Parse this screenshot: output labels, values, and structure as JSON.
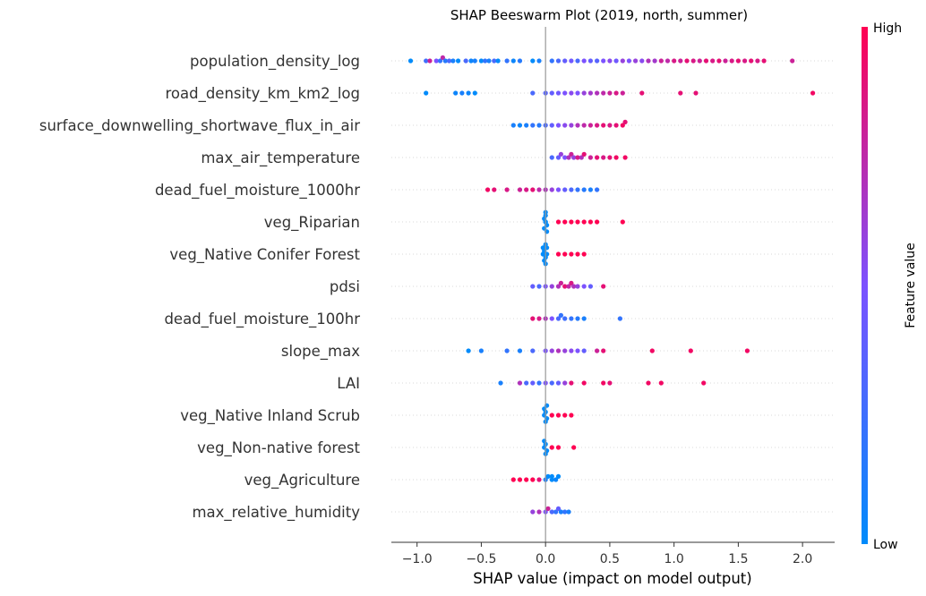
{
  "chart_data": {
    "type": "scatter",
    "subtype": "shap-beeswarm",
    "title": "SHAP Beeswarm Plot (2019, north, summer)",
    "xlabel": "SHAP value (impact on model output)",
    "xlim": [
      -1.2,
      2.25
    ],
    "xticks": [
      -1.0,
      -0.5,
      0.0,
      0.5,
      1.0,
      1.5,
      2.0
    ],
    "xtick_labels": [
      "−1.0",
      "−0.5",
      "0.0",
      "0.5",
      "1.0",
      "1.5",
      "2.0"
    ],
    "colorbar": {
      "label": "Feature value",
      "high": "High",
      "low": "Low",
      "low_color": "#008bfb",
      "high_color": "#ff0052"
    },
    "features": [
      {
        "name": "population_density_log",
        "points": [
          [
            -1.05,
            0.0
          ],
          [
            -0.93,
            0.25
          ],
          [
            -0.9,
            0.8
          ],
          [
            -0.85,
            0.5
          ],
          [
            -0.82,
            0.2
          ],
          [
            -0.8,
            0.75
          ],
          [
            -0.78,
            0.15
          ],
          [
            -0.75,
            0.3
          ],
          [
            -0.72,
            0.1
          ],
          [
            -0.68,
            0.0
          ],
          [
            -0.62,
            0.3
          ],
          [
            -0.58,
            0.05
          ],
          [
            -0.55,
            0.1
          ],
          [
            -0.5,
            0.0
          ],
          [
            -0.47,
            0.2
          ],
          [
            -0.44,
            0.1
          ],
          [
            -0.4,
            0.3
          ],
          [
            -0.37,
            0.0
          ],
          [
            -0.3,
            0.2
          ],
          [
            -0.25,
            0.05
          ],
          [
            -0.2,
            0.15
          ],
          [
            -0.1,
            0.0
          ],
          [
            -0.05,
            0.1
          ],
          [
            0.05,
            0.2
          ],
          [
            0.1,
            0.3
          ],
          [
            0.15,
            0.4
          ],
          [
            0.2,
            0.45
          ],
          [
            0.25,
            0.3
          ],
          [
            0.3,
            0.5
          ],
          [
            0.35,
            0.4
          ],
          [
            0.4,
            0.35
          ],
          [
            0.45,
            0.5
          ],
          [
            0.5,
            0.55
          ],
          [
            0.55,
            0.45
          ],
          [
            0.6,
            0.6
          ],
          [
            0.65,
            0.5
          ],
          [
            0.7,
            0.6
          ],
          [
            0.75,
            0.55
          ],
          [
            0.8,
            0.7
          ],
          [
            0.85,
            0.65
          ],
          [
            0.9,
            0.8
          ],
          [
            0.95,
            0.75
          ],
          [
            1.0,
            0.85
          ],
          [
            1.05,
            0.8
          ],
          [
            1.1,
            0.9
          ],
          [
            1.15,
            0.85
          ],
          [
            1.2,
            0.8
          ],
          [
            1.25,
            0.9
          ],
          [
            1.3,
            0.85
          ],
          [
            1.35,
            0.9
          ],
          [
            1.4,
            0.8
          ],
          [
            1.45,
            0.85
          ],
          [
            1.5,
            0.9
          ],
          [
            1.55,
            0.85
          ],
          [
            1.6,
            0.9
          ],
          [
            1.65,
            0.85
          ],
          [
            1.7,
            0.9
          ],
          [
            1.92,
            0.8
          ]
        ]
      },
      {
        "name": "road_density_km_km2_log",
        "points": [
          [
            -0.93,
            0.0
          ],
          [
            -0.7,
            0.05
          ],
          [
            -0.65,
            0.1
          ],
          [
            -0.6,
            0.05
          ],
          [
            -0.55,
            0.0
          ],
          [
            -0.1,
            0.3
          ],
          [
            0.0,
            0.35
          ],
          [
            0.05,
            0.4
          ],
          [
            0.1,
            0.45
          ],
          [
            0.15,
            0.5
          ],
          [
            0.2,
            0.55
          ],
          [
            0.25,
            0.5
          ],
          [
            0.3,
            0.6
          ],
          [
            0.35,
            0.65
          ],
          [
            0.4,
            0.7
          ],
          [
            0.45,
            0.75
          ],
          [
            0.5,
            0.8
          ],
          [
            0.55,
            0.85
          ],
          [
            0.6,
            0.8
          ],
          [
            0.75,
            0.9
          ],
          [
            1.05,
            0.9
          ],
          [
            1.17,
            0.9
          ],
          [
            2.08,
            0.95
          ]
        ]
      },
      {
        "name": "surface_downwelling_shortwave_flux_in_air",
        "points": [
          [
            -0.25,
            0.1
          ],
          [
            -0.2,
            0.05
          ],
          [
            -0.15,
            0.1
          ],
          [
            -0.1,
            0.2
          ],
          [
            -0.05,
            0.15
          ],
          [
            0.0,
            0.3
          ],
          [
            0.05,
            0.4
          ],
          [
            0.1,
            0.5
          ],
          [
            0.15,
            0.55
          ],
          [
            0.2,
            0.6
          ],
          [
            0.25,
            0.7
          ],
          [
            0.3,
            0.75
          ],
          [
            0.35,
            0.8
          ],
          [
            0.4,
            0.85
          ],
          [
            0.45,
            0.9
          ],
          [
            0.5,
            0.85
          ],
          [
            0.55,
            0.9
          ],
          [
            0.6,
            0.95
          ],
          [
            0.62,
            0.9
          ]
        ]
      },
      {
        "name": "max_air_temperature",
        "points": [
          [
            0.05,
            0.3
          ],
          [
            0.1,
            0.4
          ],
          [
            0.12,
            0.6
          ],
          [
            0.15,
            0.5
          ],
          [
            0.18,
            0.7
          ],
          [
            0.2,
            0.8
          ],
          [
            0.22,
            0.6
          ],
          [
            0.25,
            0.85
          ],
          [
            0.28,
            0.7
          ],
          [
            0.3,
            0.9
          ],
          [
            0.35,
            0.8
          ],
          [
            0.4,
            0.9
          ],
          [
            0.45,
            0.85
          ],
          [
            0.5,
            0.9
          ],
          [
            0.55,
            0.95
          ],
          [
            0.62,
            0.95
          ]
        ]
      },
      {
        "name": "dead_fuel_moisture_1000hr",
        "points": [
          [
            -0.45,
            0.95
          ],
          [
            -0.4,
            0.9
          ],
          [
            -0.3,
            0.85
          ],
          [
            -0.2,
            0.8
          ],
          [
            -0.15,
            0.85
          ],
          [
            -0.1,
            0.9
          ],
          [
            -0.05,
            0.75
          ],
          [
            0.0,
            0.7
          ],
          [
            0.05,
            0.6
          ],
          [
            0.1,
            0.5
          ],
          [
            0.15,
            0.4
          ],
          [
            0.2,
            0.3
          ],
          [
            0.25,
            0.2
          ],
          [
            0.3,
            0.15
          ],
          [
            0.35,
            0.1
          ],
          [
            0.4,
            0.2
          ]
        ]
      },
      {
        "name": "veg_Riparian",
        "points": [
          [
            0.0,
            0.0
          ],
          [
            -0.01,
            0.0
          ],
          [
            0.01,
            0.0
          ],
          [
            0.0,
            0.0
          ],
          [
            -0.01,
            0.0
          ],
          [
            0.0,
            0.0
          ],
          [
            0.01,
            0.0
          ],
          [
            0.0,
            0.0
          ],
          [
            0.1,
            1.0
          ],
          [
            0.15,
            1.0
          ],
          [
            0.2,
            1.0
          ],
          [
            0.25,
            1.0
          ],
          [
            0.3,
            1.0
          ],
          [
            0.35,
            1.0
          ],
          [
            0.4,
            1.0
          ],
          [
            0.6,
            1.0
          ]
        ]
      },
      {
        "name": "veg_Native Conifer Forest",
        "points": [
          [
            -0.02,
            0.0
          ],
          [
            -0.01,
            0.0
          ],
          [
            0.0,
            0.0
          ],
          [
            0.01,
            0.0
          ],
          [
            -0.02,
            0.0
          ],
          [
            -0.01,
            0.0
          ],
          [
            0.0,
            0.0
          ],
          [
            0.01,
            0.0
          ],
          [
            0.0,
            0.0
          ],
          [
            0.1,
            1.0
          ],
          [
            0.15,
            1.0
          ],
          [
            0.2,
            1.0
          ],
          [
            0.25,
            1.0
          ],
          [
            0.3,
            1.0
          ]
        ]
      },
      {
        "name": "pdsi",
        "points": [
          [
            -0.1,
            0.4
          ],
          [
            -0.05,
            0.3
          ],
          [
            0.0,
            0.5
          ],
          [
            0.05,
            0.6
          ],
          [
            0.1,
            0.7
          ],
          [
            0.12,
            0.8
          ],
          [
            0.15,
            0.9
          ],
          [
            0.18,
            0.75
          ],
          [
            0.2,
            0.85
          ],
          [
            0.22,
            0.7
          ],
          [
            0.25,
            0.6
          ],
          [
            0.3,
            0.5
          ],
          [
            0.35,
            0.4
          ],
          [
            0.45,
            0.9
          ]
        ]
      },
      {
        "name": "dead_fuel_moisture_100hr",
        "points": [
          [
            -0.1,
            0.9
          ],
          [
            -0.05,
            0.85
          ],
          [
            0.0,
            0.7
          ],
          [
            0.05,
            0.5
          ],
          [
            0.1,
            0.3
          ],
          [
            0.12,
            0.2
          ],
          [
            0.15,
            0.25
          ],
          [
            0.2,
            0.2
          ],
          [
            0.25,
            0.15
          ],
          [
            0.3,
            0.1
          ],
          [
            0.58,
            0.2
          ]
        ]
      },
      {
        "name": "slope_max",
        "points": [
          [
            -0.6,
            0.0
          ],
          [
            -0.5,
            0.1
          ],
          [
            -0.3,
            0.2
          ],
          [
            -0.2,
            0.1
          ],
          [
            -0.1,
            0.3
          ],
          [
            0.0,
            0.5
          ],
          [
            0.05,
            0.6
          ],
          [
            0.1,
            0.7
          ],
          [
            0.15,
            0.6
          ],
          [
            0.2,
            0.55
          ],
          [
            0.25,
            0.5
          ],
          [
            0.3,
            0.4
          ],
          [
            0.4,
            0.8
          ],
          [
            0.45,
            0.9
          ],
          [
            0.83,
            0.95
          ],
          [
            1.13,
            0.95
          ],
          [
            1.57,
            0.95
          ]
        ]
      },
      {
        "name": "LAI",
        "points": [
          [
            -0.35,
            0.1
          ],
          [
            -0.2,
            0.7
          ],
          [
            -0.15,
            0.3
          ],
          [
            -0.1,
            0.4
          ],
          [
            -0.05,
            0.2
          ],
          [
            0.0,
            0.5
          ],
          [
            0.05,
            0.3
          ],
          [
            0.1,
            0.4
          ],
          [
            0.15,
            0.6
          ],
          [
            0.2,
            0.9
          ],
          [
            0.3,
            0.95
          ],
          [
            0.45,
            0.95
          ],
          [
            0.5,
            0.9
          ],
          [
            0.8,
            0.95
          ],
          [
            0.9,
            0.95
          ],
          [
            1.23,
            0.95
          ]
        ]
      },
      {
        "name": "veg_Native Inland Scrub",
        "points": [
          [
            -0.01,
            0.0
          ],
          [
            0.0,
            0.0
          ],
          [
            0.01,
            0.0
          ],
          [
            -0.01,
            0.0
          ],
          [
            0.0,
            0.0
          ],
          [
            0.01,
            0.0
          ],
          [
            0.05,
            1.0
          ],
          [
            0.1,
            1.0
          ],
          [
            0.15,
            1.0
          ],
          [
            0.2,
            1.0
          ]
        ]
      },
      {
        "name": "veg_Non-native forest",
        "points": [
          [
            -0.01,
            0.0
          ],
          [
            0.0,
            0.0
          ],
          [
            0.01,
            0.0
          ],
          [
            -0.01,
            0.0
          ],
          [
            0.0,
            0.0
          ],
          [
            0.05,
            1.0
          ],
          [
            0.1,
            1.0
          ],
          [
            0.22,
            1.0
          ]
        ]
      },
      {
        "name": "veg_Agriculture",
        "points": [
          [
            -0.25,
            1.0
          ],
          [
            -0.2,
            1.0
          ],
          [
            -0.15,
            1.0
          ],
          [
            -0.1,
            1.0
          ],
          [
            -0.05,
            0.9
          ],
          [
            0.0,
            0.1
          ],
          [
            0.02,
            0.0
          ],
          [
            0.05,
            0.0
          ],
          [
            0.08,
            0.05
          ],
          [
            0.1,
            0.0
          ],
          [
            0.05,
            0.0
          ]
        ]
      },
      {
        "name": "max_relative_humidity",
        "points": [
          [
            -0.1,
            0.6
          ],
          [
            -0.05,
            0.7
          ],
          [
            0.0,
            0.5
          ],
          [
            0.02,
            0.8
          ],
          [
            0.05,
            0.3
          ],
          [
            0.08,
            0.2
          ],
          [
            0.1,
            0.4
          ],
          [
            0.12,
            0.1
          ],
          [
            0.15,
            0.2
          ],
          [
            0.18,
            0.1
          ]
        ]
      }
    ]
  }
}
